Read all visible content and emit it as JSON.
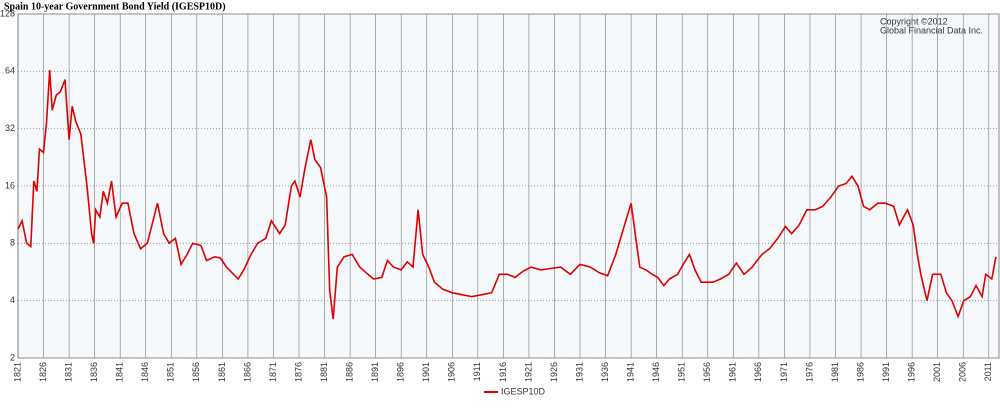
{
  "chart_data": {
    "type": "line",
    "title": "Spain 10-year Government Bond Yield (IGESP10D)",
    "annotations": [
      "Copyright ©2012",
      "Global Financial Data Inc."
    ],
    "log_scale": true,
    "grid": true,
    "legend": "bottom",
    "xlim": [
      1821,
      2013
    ],
    "ylim": [
      2,
      128
    ],
    "yticks": [
      2,
      4,
      8,
      16,
      32,
      64,
      128
    ],
    "xticks": [
      1821,
      1826,
      1831,
      1836,
      1841,
      1846,
      1851,
      1856,
      1861,
      1866,
      1871,
      1876,
      1881,
      1886,
      1891,
      1896,
      1901,
      1906,
      1911,
      1916,
      1921,
      1926,
      1931,
      1936,
      1941,
      1946,
      1951,
      1956,
      1961,
      1966,
      1971,
      1976,
      1981,
      1986,
      1991,
      1996,
      2001,
      2006,
      2011
    ],
    "x": [
      1821,
      1821.8,
      1822.7,
      1823.5,
      1824.1,
      1824.7,
      1825.2,
      1826,
      1826.6,
      1827.2,
      1827.7,
      1828.5,
      1829.3,
      1830.2,
      1831,
      1831.6,
      1832.3,
      1833.3,
      1834.5,
      1835.4,
      1835.8,
      1836.2,
      1837,
      1837.7,
      1838.5,
      1839.3,
      1840.2,
      1841.4,
      1842.5,
      1843.7,
      1845,
      1846.3,
      1848.3,
      1849.5,
      1850.6,
      1851.8,
      1852.9,
      1854.1,
      1855.2,
      1856.8,
      1857.9,
      1859.5,
      1860.6,
      1861.8,
      1862.9,
      1864.1,
      1865.2,
      1866.6,
      1867.9,
      1869.5,
      1870.6,
      1872.2,
      1873.3,
      1874.5,
      1875.2,
      1876.2,
      1877.2,
      1878.3,
      1879.1,
      1880.2,
      1881.4,
      1882,
      1882.7,
      1883.5,
      1884.8,
      1886.4,
      1887.9,
      1889.5,
      1890.6,
      1892.2,
      1893.3,
      1894.5,
      1896,
      1897.2,
      1898.3,
      1899.3,
      1900.2,
      1901.4,
      1902.5,
      1904.1,
      1906,
      1907.9,
      1909.8,
      1911.8,
      1913.7,
      1915.2,
      1916.8,
      1918.3,
      1919.8,
      1921.4,
      1923.3,
      1925.2,
      1927.2,
      1929.1,
      1931,
      1933,
      1934.8,
      1936.4,
      1938,
      1941,
      1941.8,
      1942.7,
      1943.9,
      1945.1,
      1946.2,
      1947.4,
      1948.5,
      1950.1,
      1951.2,
      1952.4,
      1953.5,
      1954.7,
      1957,
      1958.5,
      1960.1,
      1961.6,
      1963.1,
      1964.7,
      1966.6,
      1968.1,
      1969.7,
      1971.2,
      1972.4,
      1973.9,
      1975.4,
      1977,
      1978.5,
      1980.1,
      1981.6,
      1983.1,
      1984.2,
      1985.4,
      1986.5,
      1987.7,
      1989.3,
      1990.8,
      1992.4,
      1993.5,
      1995.1,
      1996.2,
      1997,
      1997.7,
      1998.9,
      2000,
      2001.6,
      2002.7,
      2003.8,
      2005,
      2006.1,
      2007.4,
      2008.5,
      2009.7,
      2010.4,
      2011.6,
      2012.4
    ],
    "series": [
      {
        "name": "IGESP10D",
        "color": "#e00000",
        "values": [
          9.5,
          10.5,
          8,
          7.7,
          17,
          15,
          25,
          24,
          35,
          65,
          40,
          48,
          50,
          58,
          28,
          42,
          35,
          30,
          16,
          9,
          8,
          12,
          11,
          15,
          13,
          17,
          11,
          13,
          13,
          9,
          7.5,
          8,
          13,
          9,
          8,
          8.5,
          6.2,
          7,
          8,
          7.8,
          6.5,
          6.8,
          6.7,
          6,
          5.6,
          5.2,
          5.8,
          7,
          8,
          8.5,
          10.5,
          9,
          10,
          16,
          17,
          14,
          20,
          28,
          22,
          20,
          14,
          4.5,
          3.2,
          6,
          6.8,
          7,
          6,
          5.5,
          5.2,
          5.3,
          6.5,
          6,
          5.8,
          6.4,
          6,
          12,
          7,
          6,
          5,
          4.6,
          4.4,
          4.3,
          4.2,
          4.3,
          4.4,
          5.5,
          5.5,
          5.3,
          5.7,
          6,
          5.8,
          5.9,
          6,
          5.5,
          6.2,
          6,
          5.6,
          5.4,
          7,
          13,
          9,
          6,
          5.8,
          5.5,
          5.3,
          4.8,
          5.2,
          5.5,
          6.2,
          7,
          5.8,
          5,
          5,
          5.2,
          5.5,
          6.3,
          5.5,
          6,
          7,
          7.5,
          8.5,
          9.8,
          9,
          10,
          12,
          12,
          12.5,
          14,
          16,
          16.5,
          18,
          16,
          12.5,
          12,
          13,
          13,
          12.5,
          10,
          12,
          10,
          7,
          5.5,
          4,
          5.5,
          5.5,
          4.4,
          4,
          3.3,
          4,
          4.2,
          4.8,
          4.2,
          5.5,
          5.2,
          6.8
        ]
      }
    ]
  }
}
